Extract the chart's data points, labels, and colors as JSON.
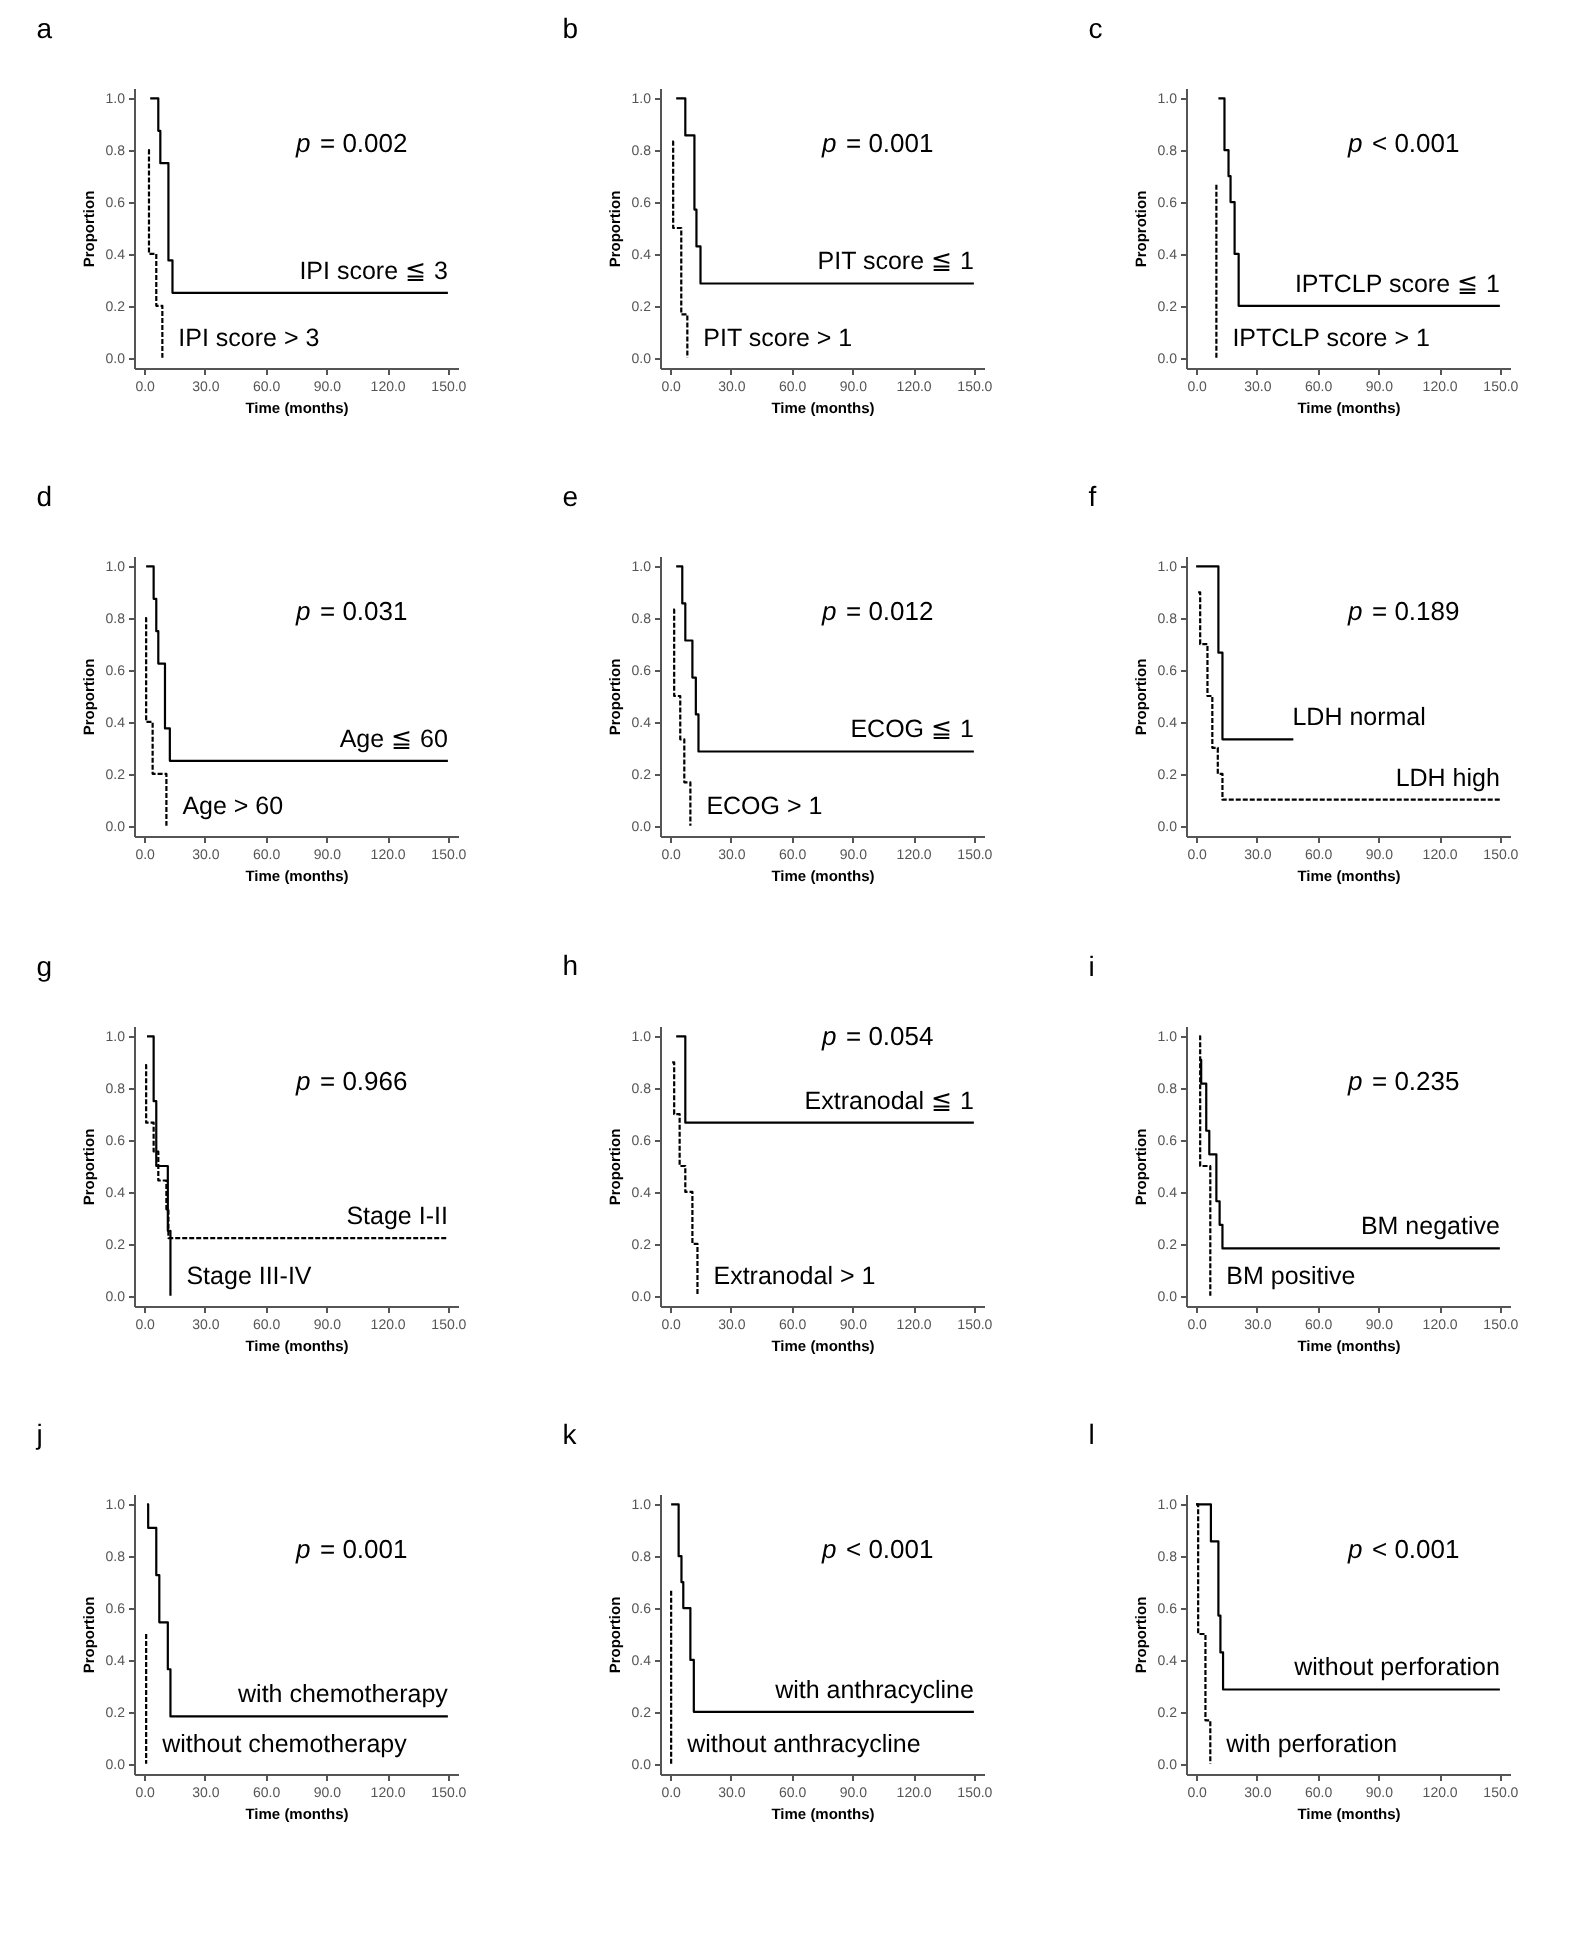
{
  "chart_data": [
    {
      "type": "step",
      "title": "a",
      "xlabel": "Time (months)",
      "ylabel": "Proportion",
      "xlim": [
        -5,
        155
      ],
      "xticks": [
        {
          "value": 0,
          "label": "0.0"
        },
        {
          "value": 30,
          "label": "30.0"
        },
        {
          "value": 60,
          "label": "60.0"
        },
        {
          "value": 90,
          "label": "90.0"
        },
        {
          "value": 120,
          "label": "120.0"
        },
        {
          "value": 150,
          "label": "150.0"
        }
      ],
      "ylim": [
        -0.04,
        1.04
      ],
      "yticks": [
        {
          "value": 0,
          "label": "0.0"
        },
        {
          "value": 0.2,
          "label": "0.2"
        },
        {
          "value": 0.4,
          "label": "0.4"
        },
        {
          "value": 0.6,
          "label": "0.6"
        },
        {
          "value": 0.8,
          "label": "0.8"
        },
        {
          "value": 1,
          "label": "1.0"
        }
      ],
      "annotations": [
        "p = 0.002"
      ],
      "series": [
        {
          "name": "IPI score ≦ 3",
          "color": "#000000",
          "line_style": "solid",
          "x": [
            3,
            7,
            8,
            12,
            14,
            150
          ],
          "values": [
            1,
            0.875,
            0.75,
            0.375,
            0.25,
            0.25
          ]
        },
        {
          "name": "IPI score > 3",
          "color": "#000000",
          "line_style": "dashed",
          "x": [
            2,
            2.4,
            6,
            9
          ],
          "values": [
            0.8,
            0.4,
            0.2,
            0
          ]
        }
      ]
    },
    {
      "type": "step",
      "title": "b",
      "xlabel": "Time (months)",
      "ylabel": "Proportion",
      "xlim": [
        -5,
        155
      ],
      "xticks": [
        {
          "value": 0,
          "label": "0.0"
        },
        {
          "value": 30,
          "label": "30.0"
        },
        {
          "value": 60,
          "label": "60.0"
        },
        {
          "value": 90,
          "label": "90.0"
        },
        {
          "value": 120,
          "label": "120.0"
        },
        {
          "value": 150,
          "label": "150.0"
        }
      ],
      "ylim": [
        -0.04,
        1.04
      ],
      "yticks": [
        {
          "value": 0,
          "label": "0.0"
        },
        {
          "value": 0.2,
          "label": "0.2"
        },
        {
          "value": 0.4,
          "label": "0.4"
        },
        {
          "value": 0.6,
          "label": "0.6"
        },
        {
          "value": 0.8,
          "label": "0.8"
        },
        {
          "value": 1,
          "label": "1.0"
        }
      ],
      "annotations": [
        "p = 0.001"
      ],
      "series": [
        {
          "name": "PIT score ≦ 1",
          "color": "#000000",
          "line_style": "solid",
          "x": [
            3,
            7.5,
            12,
            13,
            15,
            150
          ],
          "values": [
            1,
            0.857,
            0.571,
            0.429,
            0.286,
            0.286
          ]
        },
        {
          "name": "PIT score > 1",
          "color": "#000000",
          "line_style": "dashed",
          "x": [
            1,
            1.5,
            5.5,
            8.5
          ],
          "values": [
            0.833,
            0.5,
            0.167,
            0
          ]
        }
      ]
    },
    {
      "type": "step",
      "title": "c",
      "xlabel": "Time (months)",
      "ylabel": "Proprotion",
      "xlim": [
        -5,
        155
      ],
      "xticks": [
        {
          "value": 0,
          "label": "0.0"
        },
        {
          "value": 30,
          "label": "30.0"
        },
        {
          "value": 60,
          "label": "60.0"
        },
        {
          "value": 90,
          "label": "90.0"
        },
        {
          "value": 120,
          "label": "120.0"
        },
        {
          "value": 150,
          "label": "150.0"
        }
      ],
      "ylim": [
        -0.04,
        1.04
      ],
      "yticks": [
        {
          "value": 0,
          "label": "0.0"
        },
        {
          "value": 0.2,
          "label": "0.2"
        },
        {
          "value": 0.4,
          "label": "0.4"
        },
        {
          "value": 0.6,
          "label": "0.6"
        },
        {
          "value": 0.8,
          "label": "0.8"
        },
        {
          "value": 1,
          "label": "1.0"
        }
      ],
      "annotations": [
        "p < 0.001"
      ],
      "series": [
        {
          "name": "IPTCLP score ≦ 1",
          "color": "#000000",
          "line_style": "solid",
          "x": [
            11,
            14,
            16,
            17,
            19,
            21,
            150
          ],
          "values": [
            1,
            0.8,
            0.7,
            0.6,
            0.4,
            0.2,
            0.2
          ]
        },
        {
          "name": "IPTCLP score > 1",
          "color": "#000000",
          "line_style": "dashed",
          "x": [
            10,
            10
          ],
          "values": [
            0.667,
            0
          ]
        }
      ]
    },
    {
      "type": "step",
      "title": "d",
      "xlabel": "Time (months)",
      "ylabel": "Proportion",
      "xlim": [
        -5,
        155
      ],
      "xticks": [
        {
          "value": 0,
          "label": "0.0"
        },
        {
          "value": 30,
          "label": "30.0"
        },
        {
          "value": 60,
          "label": "60.0"
        },
        {
          "value": 90,
          "label": "90.0"
        },
        {
          "value": 120,
          "label": "120.0"
        },
        {
          "value": 150,
          "label": "150.0"
        }
      ],
      "ylim": [
        -0.04,
        1.04
      ],
      "yticks": [
        {
          "value": 0,
          "label": "0.0"
        },
        {
          "value": 0.2,
          "label": "0.2"
        },
        {
          "value": 0.4,
          "label": "0.4"
        },
        {
          "value": 0.6,
          "label": "0.6"
        },
        {
          "value": 0.8,
          "label": "0.8"
        },
        {
          "value": 1,
          "label": "1.0"
        }
      ],
      "annotations": [
        "p = 0.031"
      ],
      "series": [
        {
          "name": "Age ≦ 60",
          "color": "#000000",
          "line_style": "solid",
          "x": [
            1,
            4.7,
            6,
            7,
            10.3,
            12.7,
            150
          ],
          "values": [
            1,
            0.875,
            0.75,
            0.625,
            0.375,
            0.25,
            0.25
          ]
        },
        {
          "name": "Age > 60",
          "color": "#000000",
          "line_style": "dashed",
          "x": [
            0.5,
            1,
            4.2,
            11
          ],
          "values": [
            0.8,
            0.4,
            0.2,
            0
          ]
        }
      ]
    },
    {
      "type": "step",
      "title": "e",
      "xlabel": "Time (months)",
      "ylabel": "Proportion",
      "xlim": [
        -5,
        155
      ],
      "xticks": [
        {
          "value": 0,
          "label": "0.0"
        },
        {
          "value": 30,
          "label": "30.0"
        },
        {
          "value": 60,
          "label": "60.0"
        },
        {
          "value": 90,
          "label": "90.0"
        },
        {
          "value": 120,
          "label": "120.0"
        },
        {
          "value": 150,
          "label": "150.0"
        }
      ],
      "ylim": [
        -0.04,
        1.04
      ],
      "yticks": [
        {
          "value": 0,
          "label": "0.0"
        },
        {
          "value": 0.2,
          "label": "0.2"
        },
        {
          "value": 0.4,
          "label": "0.4"
        },
        {
          "value": 0.6,
          "label": "0.6"
        },
        {
          "value": 0.8,
          "label": "0.8"
        },
        {
          "value": 1,
          "label": "1.0"
        }
      ],
      "annotations": [
        "p = 0.012"
      ],
      "series": [
        {
          "name": "ECOG ≦ 1",
          "color": "#000000",
          "line_style": "solid",
          "x": [
            3,
            6,
            7.5,
            11,
            12.7,
            14,
            150
          ],
          "values": [
            1,
            0.857,
            0.714,
            0.571,
            0.429,
            0.286,
            0.286
          ]
        },
        {
          "name": "ECOG > 1",
          "color": "#000000",
          "line_style": "dashed",
          "x": [
            1.5,
            2,
            5,
            7,
            10
          ],
          "values": [
            0.833,
            0.5,
            0.333,
            0.167,
            0
          ]
        }
      ]
    },
    {
      "type": "step",
      "title": "f",
      "xlabel": "Time (months)",
      "ylabel": "Proportion",
      "xlim": [
        -5,
        155
      ],
      "xticks": [
        {
          "value": 0,
          "label": "0.0"
        },
        {
          "value": 30,
          "label": "30.0"
        },
        {
          "value": 60,
          "label": "60.0"
        },
        {
          "value": 90,
          "label": "90.0"
        },
        {
          "value": 120,
          "label": "120.0"
        },
        {
          "value": 150,
          "label": "150.0"
        }
      ],
      "ylim": [
        -0.04,
        1.04
      ],
      "yticks": [
        {
          "value": 0,
          "label": "0.0"
        },
        {
          "value": 0.2,
          "label": "0.2"
        },
        {
          "value": 0.4,
          "label": "0.4"
        },
        {
          "value": 0.6,
          "label": "0.6"
        },
        {
          "value": 0.8,
          "label": "0.8"
        },
        {
          "value": 1,
          "label": "1.0"
        }
      ],
      "annotations": [
        "p = 0.189"
      ],
      "series": [
        {
          "name": "LDH normal",
          "color": "#000000",
          "line_style": "solid",
          "x": [
            0,
            11,
            13,
            48
          ],
          "values": [
            1,
            0.667,
            0.333,
            0.333
          ]
        },
        {
          "name": "LDH high",
          "color": "#000000",
          "line_style": "dashed",
          "x": [
            1,
            2,
            5.6,
            8,
            10.7,
            13,
            150
          ],
          "values": [
            0.9,
            0.7,
            0.5,
            0.3,
            0.2,
            0.1,
            0.1
          ]
        }
      ]
    },
    {
      "type": "step",
      "title": "g",
      "xlabel": "Time (months)",
      "ylabel": "Proportion",
      "xlim": [
        -5,
        155
      ],
      "xticks": [
        {
          "value": 0,
          "label": "0.0"
        },
        {
          "value": 30,
          "label": "30.0"
        },
        {
          "value": 60,
          "label": "60.0"
        },
        {
          "value": 90,
          "label": "90.0"
        },
        {
          "value": 120,
          "label": "120.0"
        },
        {
          "value": 150,
          "label": "150.0"
        }
      ],
      "ylim": [
        -0.04,
        1.04
      ],
      "yticks": [
        {
          "value": 0,
          "label": "0.0"
        },
        {
          "value": 0.2,
          "label": "0.2"
        },
        {
          "value": 0.4,
          "label": "0.4"
        },
        {
          "value": 0.6,
          "label": "0.6"
        },
        {
          "value": 0.8,
          "label": "0.8"
        },
        {
          "value": 1,
          "label": "1.0"
        }
      ],
      "annotations": [
        "p = 0.966"
      ],
      "series": [
        {
          "name": "Stage III-IV",
          "color": "#000000",
          "line_style": "solid",
          "x": [
            1.4,
            4.7,
            6,
            11.7,
            13
          ],
          "values": [
            1,
            0.75,
            0.5,
            0.25,
            0
          ]
        },
        {
          "name": "Stage I-II",
          "color": "#000000",
          "line_style": "dashed",
          "x": [
            0.5,
            1,
            4.7,
            7,
            11,
            12,
            150
          ],
          "values": [
            0.889,
            0.667,
            0.556,
            0.444,
            0.333,
            0.222,
            0.222
          ]
        }
      ]
    },
    {
      "type": "step",
      "title": "h",
      "xlabel": "Time (months)",
      "ylabel": "Proportion",
      "xlim": [
        -5,
        155
      ],
      "xticks": [
        {
          "value": 0,
          "label": "0.0"
        },
        {
          "value": 30,
          "label": "30.0"
        },
        {
          "value": 60,
          "label": "60.0"
        },
        {
          "value": 90,
          "label": "90.0"
        },
        {
          "value": 120,
          "label": "120.0"
        },
        {
          "value": 150,
          "label": "150.0"
        }
      ],
      "ylim": [
        -0.04,
        1.04
      ],
      "yticks": [
        {
          "value": 0,
          "label": "0.0"
        },
        {
          "value": 0.2,
          "label": "0.2"
        },
        {
          "value": 0.4,
          "label": "0.4"
        },
        {
          "value": 0.6,
          "label": "0.6"
        },
        {
          "value": 0.8,
          "label": "0.8"
        },
        {
          "value": 1,
          "label": "1.0"
        }
      ],
      "annotations": [
        "p = 0.054"
      ],
      "series": [
        {
          "name": "Extranodal ≦ 1",
          "color": "#000000",
          "line_style": "solid",
          "x": [
            3,
            7.5,
            150
          ],
          "values": [
            1,
            0.667,
            0.667
          ]
        },
        {
          "name": "Extranodal > 1",
          "color": "#000000",
          "line_style": "dashed",
          "x": [
            1,
            2,
            4.7,
            7.5,
            11,
            13.5
          ],
          "values": [
            0.9,
            0.7,
            0.5,
            0.4,
            0.2,
            0
          ]
        }
      ]
    },
    {
      "type": "step",
      "title": "i",
      "xlabel": "Time (months)",
      "ylabel": "Proportion",
      "xlim": [
        -5,
        155
      ],
      "xticks": [
        {
          "value": 0,
          "label": "0.0"
        },
        {
          "value": 30,
          "label": "30.0"
        },
        {
          "value": 60,
          "label": "60.0"
        },
        {
          "value": 90,
          "label": "90.0"
        },
        {
          "value": 120,
          "label": "120.0"
        },
        {
          "value": 150,
          "label": "150.0"
        }
      ],
      "ylim": [
        -0.04,
        1.04
      ],
      "yticks": [
        {
          "value": 0,
          "label": "0.0"
        },
        {
          "value": 0.2,
          "label": "0.2"
        },
        {
          "value": 0.4,
          "label": "0.4"
        },
        {
          "value": 0.6,
          "label": "0.6"
        },
        {
          "value": 0.8,
          "label": "0.8"
        },
        {
          "value": 1,
          "label": "1.0"
        }
      ],
      "annotations": [
        "p = 0.235"
      ],
      "series": [
        {
          "name": "BM negative",
          "color": "#000000",
          "line_style": "solid",
          "x": [
            2,
            2.5,
            5,
            6.5,
            10,
            11.6,
            13,
            150
          ],
          "values": [
            0.909,
            0.818,
            0.636,
            0.545,
            0.364,
            0.273,
            0.182,
            0.182
          ]
        },
        {
          "name": "BM positive",
          "color": "#000000",
          "line_style": "dashed",
          "x": [
            1.5,
            2,
            7
          ],
          "values": [
            1,
            0.5,
            0
          ]
        }
      ]
    },
    {
      "type": "step",
      "title": "j",
      "xlabel": "Time (months)",
      "ylabel": "Proportion",
      "xlim": [
        -5,
        155
      ],
      "xticks": [
        {
          "value": 0,
          "label": "0.0"
        },
        {
          "value": 30,
          "label": "30.0"
        },
        {
          "value": 60,
          "label": "60.0"
        },
        {
          "value": 90,
          "label": "90.0"
        },
        {
          "value": 120,
          "label": "120.0"
        },
        {
          "value": 150,
          "label": "150.0"
        }
      ],
      "ylim": [
        -0.04,
        1.04
      ],
      "yticks": [
        {
          "value": 0,
          "label": "0.0"
        },
        {
          "value": 0.2,
          "label": "0.2"
        },
        {
          "value": 0.4,
          "label": "0.4"
        },
        {
          "value": 0.6,
          "label": "0.6"
        },
        {
          "value": 0.8,
          "label": "0.8"
        },
        {
          "value": 1,
          "label": "1.0"
        }
      ],
      "annotations": [
        "p = 0.001"
      ],
      "series": [
        {
          "name": "with chemotherapy",
          "color": "#000000",
          "line_style": "solid",
          "x": [
            1.4,
            2,
            6,
            7.5,
            11.7,
            13,
            150
          ],
          "values": [
            1,
            0.909,
            0.727,
            0.545,
            0.364,
            0.182,
            0.182
          ]
        },
        {
          "name": "without chemotherapy",
          "color": "#000000",
          "line_style": "dashed",
          "x": [
            1,
            1
          ],
          "values": [
            0.5,
            0
          ]
        }
      ]
    },
    {
      "type": "step",
      "title": "k",
      "xlabel": "Time (months)",
      "ylabel": "Proportion",
      "xlim": [
        -5,
        155
      ],
      "xticks": [
        {
          "value": 0,
          "label": "0.0"
        },
        {
          "value": 30,
          "label": "30.0"
        },
        {
          "value": 60,
          "label": "60.0"
        },
        {
          "value": 90,
          "label": "90.0"
        },
        {
          "value": 120,
          "label": "120.0"
        },
        {
          "value": 150,
          "label": "150.0"
        }
      ],
      "ylim": [
        -0.04,
        1.04
      ],
      "yticks": [
        {
          "value": 0,
          "label": "0.0"
        },
        {
          "value": 0.2,
          "label": "0.2"
        },
        {
          "value": 0.4,
          "label": "0.4"
        },
        {
          "value": 0.6,
          "label": "0.6"
        },
        {
          "value": 0.8,
          "label": "0.8"
        },
        {
          "value": 1,
          "label": "1.0"
        }
      ],
      "annotations": [
        "p < 0.001"
      ],
      "series": [
        {
          "name": "with anthracycline",
          "color": "#000000",
          "line_style": "solid",
          "x": [
            0.5,
            4.2,
            5.6,
            6.5,
            10,
            11.7,
            150
          ],
          "values": [
            1,
            0.8,
            0.7,
            0.6,
            0.4,
            0.2,
            0.2
          ]
        },
        {
          "name": "without anthracycline",
          "color": "#000000",
          "line_style": "dashed",
          "x": [
            0.5,
            0.5
          ],
          "values": [
            0.667,
            0
          ]
        }
      ]
    },
    {
      "type": "step",
      "title": "l",
      "xlabel": "Time (months)",
      "ylabel": "Proportion",
      "xlim": [
        -5,
        155
      ],
      "xticks": [
        {
          "value": 0,
          "label": "0.0"
        },
        {
          "value": 30,
          "label": "30.0"
        },
        {
          "value": 60,
          "label": "60.0"
        },
        {
          "value": 90,
          "label": "90.0"
        },
        {
          "value": 120,
          "label": "120.0"
        },
        {
          "value": 150,
          "label": "150.0"
        }
      ],
      "ylim": [
        -0.04,
        1.04
      ],
      "yticks": [
        {
          "value": 0,
          "label": "0.0"
        },
        {
          "value": 0.2,
          "label": "0.2"
        },
        {
          "value": 0.4,
          "label": "0.4"
        },
        {
          "value": 0.6,
          "label": "0.6"
        },
        {
          "value": 0.8,
          "label": "0.8"
        },
        {
          "value": 1,
          "label": "1.0"
        }
      ],
      "annotations": [
        "p < 0.001"
      ],
      "series": [
        {
          "name": "without perforation",
          "color": "#000000",
          "line_style": "solid",
          "x": [
            0,
            7.3,
            11,
            12,
            13.3,
            150
          ],
          "values": [
            1,
            0.857,
            0.571,
            0.429,
            0.286,
            0.286
          ]
        },
        {
          "name": "with perforation",
          "color": "#000000",
          "line_style": "dashed",
          "x": [
            0,
            1,
            4.6,
            7
          ],
          "values": [
            1,
            0.5,
            0.167,
            0
          ]
        }
      ]
    }
  ]
}
